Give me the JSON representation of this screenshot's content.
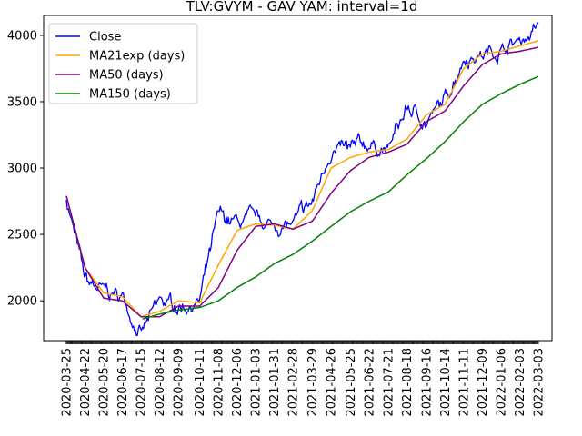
{
  "chart_data": {
    "type": "line",
    "title": "TLV:GVYM - GAV YAM: interval=1d",
    "xlabel": "",
    "ylabel": "",
    "ylim": [
      1700,
      4150
    ],
    "yticks": [
      2000,
      2500,
      3000,
      3500,
      4000
    ],
    "xticks": [
      "2020-03-25",
      "2020-04-22",
      "2020-05-20",
      "2020-06-17",
      "2020-07-15",
      "2020-08-12",
      "2020-09-09",
      "2020-10-11",
      "2020-11-08",
      "2020-12-06",
      "2021-01-03",
      "2021-01-31",
      "2021-02-28",
      "2021-03-29",
      "2021-04-26",
      "2021-05-25",
      "2021-06-22",
      "2021-07-21",
      "2021-08-18",
      "2021-09-16",
      "2021-10-14",
      "2021-11-11",
      "2021-12-09",
      "2022-01-06",
      "2022-02-03",
      "2022-03-03"
    ],
    "legend_position": "upper-left",
    "grid": false,
    "x_days": [
      0,
      28,
      56,
      84,
      112,
      140,
      168,
      200,
      228,
      256,
      284,
      312,
      340,
      369,
      397,
      426,
      454,
      483,
      511,
      540,
      568,
      596,
      624,
      652,
      680,
      708
    ],
    "series": [
      {
        "name": "Close",
        "color": "#0000ff",
        "values": [
          2780,
          2140,
          2060,
          2030,
          1750,
          1980,
          1960,
          2000,
          2620,
          2580,
          2600,
          2560,
          2570,
          2730,
          3150,
          3120,
          3180,
          3140,
          3450,
          3350,
          3500,
          3850,
          3860,
          3900,
          3960,
          4060
        ]
      },
      {
        "name": "MA21exp (days)",
        "color": "#ffa500",
        "values": [
          2790,
          2250,
          2060,
          2030,
          1880,
          1920,
          2000,
          1985,
          2270,
          2530,
          2580,
          2570,
          2540,
          2680,
          3000,
          3080,
          3120,
          3140,
          3220,
          3400,
          3480,
          3750,
          3860,
          3880,
          3920,
          3960
        ]
      },
      {
        "name": "MA50 (days)",
        "color": "#800080",
        "values": [
          2790,
          2250,
          2020,
          2000,
          1880,
          1880,
          1960,
          1960,
          2100,
          2380,
          2560,
          2580,
          2540,
          2600,
          2810,
          2980,
          3080,
          3120,
          3180,
          3350,
          3430,
          3620,
          3780,
          3860,
          3880,
          3910
        ]
      },
      {
        "name": "MA150 (days)",
        "color": "#008000",
        "values": [
          null,
          null,
          null,
          null,
          1860,
          1900,
          1930,
          1950,
          2000,
          2100,
          2180,
          2280,
          2350,
          2450,
          2560,
          2670,
          2750,
          2820,
          2950,
          3070,
          3200,
          3350,
          3480,
          3560,
          3630,
          3690
        ]
      }
    ]
  }
}
